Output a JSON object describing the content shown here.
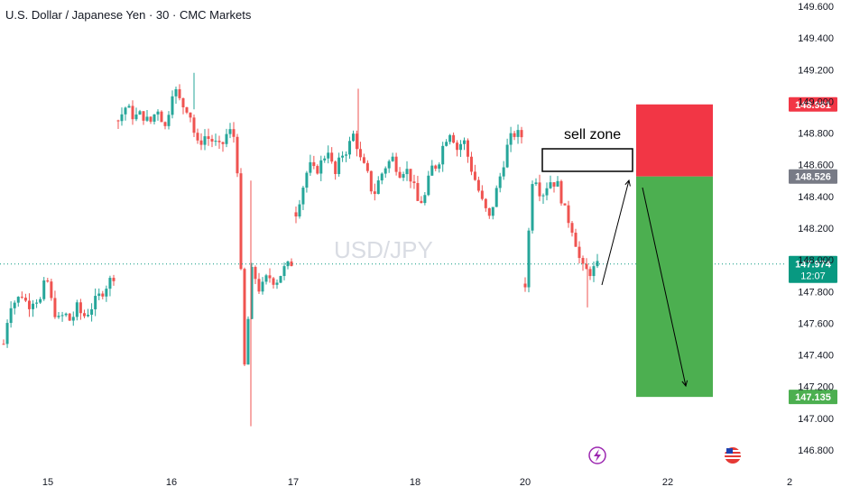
{
  "header": {
    "title": "U.S. Dollar / Japanese Yen · 30 · CMC Markets"
  },
  "watermark": "USD/JPY",
  "annotation": {
    "sell_zone": "sell zone"
  },
  "price_tags": {
    "target_high": "148.981",
    "entry": "148.526",
    "current": "147.974",
    "countdown": "12:07",
    "target_low": "147.135"
  },
  "colors": {
    "up": "#26a69a",
    "down": "#ef5350",
    "profit_zone": "#4caf50",
    "loss_zone": "#f23645",
    "current_price_line": "#089981",
    "entry_tag": "#787b86"
  },
  "icons": [
    "lightning-event-icon",
    "us-flag-event-icon"
  ],
  "chart_data": {
    "type": "candlestick",
    "title": "U.S. Dollar / Japanese Yen · 30 · CMC Markets",
    "interval": "30",
    "y_axis": {
      "position": "right",
      "ylim": [
        146.72,
        149.62
      ],
      "ticks": [
        "149.600",
        "149.400",
        "149.200",
        "149.000",
        "148.800",
        "148.600",
        "148.400",
        "148.200",
        "148.000",
        "147.800",
        "147.600",
        "147.400",
        "147.200",
        "147.000",
        "146.800"
      ]
    },
    "x_axis": {
      "ticks": [
        "15",
        "16",
        "17",
        "18",
        "20",
        "22",
        "2"
      ]
    },
    "grid": false,
    "series_path_close": [
      147.47,
      147.72,
      147.74,
      147.78,
      147.71,
      147.76,
      147.74,
      147.9,
      147.7,
      147.62,
      147.66,
      147.61,
      147.7,
      147.64,
      147.68,
      147.74,
      147.79,
      147.85,
      147.9,
      148.88,
      148.97,
      148.9,
      148.92,
      148.86,
      148.96,
      148.83,
      149.1,
      148.98,
      148.95,
      148.72,
      148.78,
      148.75,
      148.7,
      148.82,
      148.76,
      147.3,
      147.95,
      147.8,
      147.9,
      147.86,
      147.94,
      147.98,
      148.3,
      148.45,
      148.6,
      148.55,
      148.62,
      148.7,
      148.52,
      148.66,
      148.7,
      148.8,
      148.63,
      148.55,
      148.4,
      148.52,
      148.6,
      148.64,
      148.55,
      148.58,
      148.5,
      148.35,
      148.4,
      148.58,
      148.6,
      148.75,
      148.82,
      148.7,
      148.76,
      148.6,
      148.48,
      148.35,
      148.26,
      148.42,
      148.58,
      148.75,
      148.8,
      148.78,
      147.85,
      148.58,
      148.4,
      148.5,
      148.48,
      148.3,
      148.18,
      147.95,
      147.92,
      147.96
    ],
    "current_price": 147.974,
    "position": {
      "type": "short",
      "entry": 148.526,
      "stop_target": 148.981,
      "take_profit": 147.135
    },
    "annotations": [
      {
        "text": "sell zone"
      }
    ]
  }
}
